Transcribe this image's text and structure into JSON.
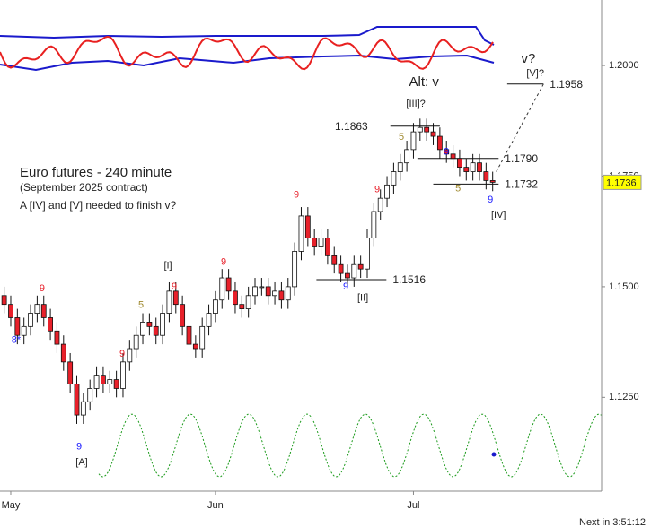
{
  "chart_data": {
    "type": "candlestick",
    "title": "Euro futures - 240 minute",
    "subtitle": "(September 2025 contract)",
    "note": "A [IV] and [V] needed to finish v?",
    "footer": "Next in 3:51:12",
    "up_color": "#ffffff",
    "down_color": "#e8202a",
    "x": [
      0,
      1,
      2,
      3,
      4,
      5,
      6,
      7,
      8,
      9,
      10,
      11,
      12,
      13,
      14,
      15,
      16,
      17,
      18,
      19,
      20,
      21,
      22,
      23,
      24,
      25,
      26,
      27,
      28,
      29,
      30,
      31,
      32,
      33,
      34,
      35,
      36,
      37,
      38,
      39,
      40,
      41,
      42,
      43,
      44,
      45,
      46,
      47,
      48,
      49,
      50,
      51,
      52,
      53,
      54,
      55,
      56,
      57,
      58,
      59,
      60,
      61,
      62,
      63,
      64,
      65,
      66,
      67,
      68,
      69,
      70,
      71,
      72,
      73,
      74
    ],
    "open": [
      1.148,
      1.146,
      1.143,
      1.139,
      1.141,
      1.144,
      1.146,
      1.143,
      1.14,
      1.137,
      1.133,
      1.128,
      1.121,
      1.124,
      1.127,
      1.13,
      1.128,
      1.129,
      1.127,
      1.133,
      1.136,
      1.139,
      1.142,
      1.141,
      1.139,
      1.144,
      1.149,
      1.146,
      1.141,
      1.137,
      1.136,
      1.141,
      1.144,
      1.147,
      1.152,
      1.149,
      1.146,
      1.145,
      1.148,
      1.15,
      1.15,
      1.148,
      1.149,
      1.147,
      1.15,
      1.158,
      1.166,
      1.161,
      1.159,
      1.161,
      1.157,
      1.155,
      1.153,
      1.152,
      1.155,
      1.154,
      1.161,
      1.167,
      1.17,
      1.173,
      1.176,
      1.178,
      1.181,
      1.185,
      1.186,
      1.185,
      1.184,
      1.181,
      1.18,
      1.179,
      1.177,
      1.176,
      1.178,
      1.176,
      1.174
    ],
    "high": [
      1.15,
      1.148,
      1.145,
      1.143,
      1.146,
      1.148,
      1.148,
      1.145,
      1.142,
      1.139,
      1.135,
      1.13,
      1.126,
      1.129,
      1.132,
      1.132,
      1.131,
      1.131,
      1.135,
      1.138,
      1.141,
      1.144,
      1.144,
      1.143,
      1.146,
      1.151,
      1.151,
      1.148,
      1.143,
      1.139,
      1.143,
      1.146,
      1.149,
      1.154,
      1.154,
      1.151,
      1.148,
      1.15,
      1.152,
      1.152,
      1.152,
      1.151,
      1.151,
      1.152,
      1.16,
      1.168,
      1.168,
      1.163,
      1.163,
      1.163,
      1.159,
      1.157,
      1.155,
      1.157,
      1.157,
      1.163,
      1.169,
      1.172,
      1.175,
      1.178,
      1.18,
      1.183,
      1.187,
      1.188,
      1.188,
      1.187,
      1.186,
      1.183,
      1.182,
      1.181,
      1.179,
      1.18,
      1.18,
      1.178,
      1.176
    ],
    "low": [
      1.144,
      1.141,
      1.137,
      1.137,
      1.139,
      1.142,
      1.141,
      1.138,
      1.135,
      1.131,
      1.126,
      1.119,
      1.119,
      1.122,
      1.125,
      1.126,
      1.126,
      1.125,
      1.125,
      1.131,
      1.134,
      1.137,
      1.139,
      1.137,
      1.137,
      1.142,
      1.144,
      1.139,
      1.135,
      1.134,
      1.134,
      1.139,
      1.142,
      1.145,
      1.147,
      1.144,
      1.143,
      1.143,
      1.146,
      1.148,
      1.146,
      1.146,
      1.145,
      1.145,
      1.148,
      1.156,
      1.159,
      1.157,
      1.157,
      1.155,
      1.153,
      1.151,
      1.15,
      1.15,
      1.152,
      1.152,
      1.159,
      1.165,
      1.168,
      1.171,
      1.174,
      1.176,
      1.179,
      1.183,
      1.183,
      1.182,
      1.179,
      1.178,
      1.177,
      1.175,
      1.174,
      1.174,
      1.174,
      1.172,
      1.1716
    ],
    "close": [
      1.146,
      1.143,
      1.139,
      1.141,
      1.144,
      1.146,
      1.143,
      1.14,
      1.137,
      1.133,
      1.128,
      1.121,
      1.124,
      1.127,
      1.13,
      1.128,
      1.129,
      1.127,
      1.133,
      1.136,
      1.139,
      1.142,
      1.141,
      1.139,
      1.144,
      1.149,
      1.146,
      1.141,
      1.137,
      1.136,
      1.141,
      1.144,
      1.147,
      1.152,
      1.149,
      1.146,
      1.145,
      1.148,
      1.15,
      1.15,
      1.148,
      1.149,
      1.147,
      1.15,
      1.158,
      1.166,
      1.161,
      1.159,
      1.161,
      1.157,
      1.155,
      1.153,
      1.152,
      1.155,
      1.154,
      1.161,
      1.167,
      1.17,
      1.173,
      1.176,
      1.178,
      1.181,
      1.185,
      1.186,
      1.185,
      1.184,
      1.181,
      1.18,
      1.179,
      1.177,
      1.176,
      1.178,
      1.176,
      1.174,
      1.1736
    ],
    "xlim": [
      -0.63,
      90.5
    ],
    "xticks": [
      {
        "value": 1,
        "label": "May"
      },
      {
        "value": 32,
        "label": "Jun"
      },
      {
        "value": 62,
        "label": "Jul"
      }
    ],
    "ylim": [
      1.1038,
      1.2148
    ],
    "yticks": [
      {
        "value": 1.125,
        "label": "1.1250"
      },
      {
        "value": 1.15,
        "label": "1.1500"
      },
      {
        "value": 1.175,
        "label": "1.1750"
      },
      {
        "value": 1.2,
        "label": "1.2000"
      }
    ],
    "levels": [
      {
        "value": 1.1863,
        "label": "1.1863",
        "from": 58.5,
        "to": 66,
        "side": "left"
      },
      {
        "value": 1.179,
        "label": "1.1790",
        "from": 62.6,
        "to": 74.9,
        "side": "right"
      },
      {
        "value": 1.1732,
        "label": "1.1732",
        "from": 65,
        "to": 74.9,
        "side": "right"
      },
      {
        "value": 1.1516,
        "label": "1.1516",
        "from": 47.3,
        "to": 57.9,
        "side": "right"
      },
      {
        "value": 1.1958,
        "label": "1.1958",
        "from": 76.2,
        "to": 81.7,
        "side": "right"
      }
    ],
    "annotations": [
      {
        "text": "8*",
        "x": 1.82,
        "y": 1.1379,
        "color": "#1a1aff"
      },
      {
        "text": "9",
        "x": 5.76,
        "y": 1.1496,
        "color": "#e8202a"
      },
      {
        "text": "9",
        "x": 11.34,
        "y": 1.1138,
        "color": "#1a1aff"
      },
      {
        "text": "[A]",
        "x": 11.75,
        "y": 1.1103,
        "color": "#222222"
      },
      {
        "text": "9",
        "x": 17.87,
        "y": 1.1348,
        "color": "#e8202a"
      },
      {
        "text": "5",
        "x": 20.73,
        "y": 1.1458,
        "color": "#a08a30"
      },
      {
        "text": "[I]",
        "x": 24.81,
        "y": 1.1547,
        "color": "#222222"
      },
      {
        "text": "9",
        "x": 25.76,
        "y": 1.15,
        "color": "#e8202a"
      },
      {
        "text": "9",
        "x": 33.24,
        "y": 1.1555,
        "color": "#e8202a"
      },
      {
        "text": "9",
        "x": 44.26,
        "y": 1.1707,
        "color": "#e8202a"
      },
      {
        "text": "9",
        "x": 51.75,
        "y": 1.15,
        "color": "#1a1aff"
      },
      {
        "text": "[II]",
        "x": 54.33,
        "y": 1.1474,
        "color": "#222222"
      },
      {
        "text": "9",
        "x": 56.51,
        "y": 1.1719,
        "color": "#e8202a"
      },
      {
        "text": "5",
        "x": 60.18,
        "y": 1.1838,
        "color": "#a08a30"
      },
      {
        "text": "[III]?",
        "x": 62.36,
        "y": 1.1913,
        "color": "#222222"
      },
      {
        "text": "9",
        "x": 66.99,
        "y": 1.1804,
        "color": "#1a1aff"
      },
      {
        "text": "5",
        "x": 68.76,
        "y": 1.1721,
        "color": "#a08a30"
      },
      {
        "text": "9",
        "x": 73.66,
        "y": 1.1696,
        "color": "#1a1aff"
      },
      {
        "text": "[IV]",
        "x": 74.89,
        "y": 1.1662,
        "color": "#222222"
      },
      {
        "text": "[V]?",
        "x": 80.46,
        "y": 1.1982,
        "color": "#222222"
      }
    ],
    "big_annotations": [
      {
        "text": "Alt: v",
        "x": 63.6,
        "y": 1.1962,
        "color": "#222222"
      },
      {
        "text": "v?",
        "x": 79.4,
        "y": 1.2014,
        "color": "#222222"
      }
    ]
  }
}
